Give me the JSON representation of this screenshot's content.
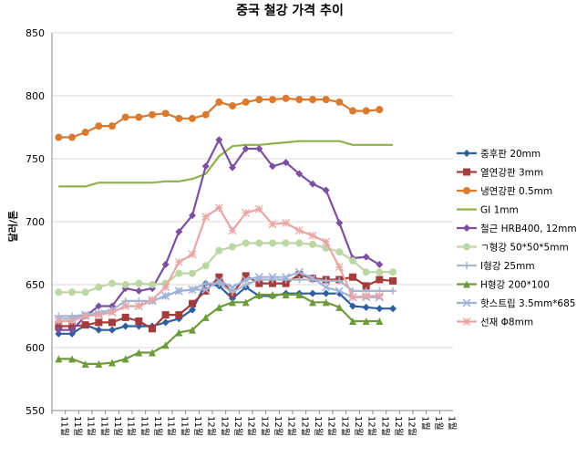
{
  "chart_data": {
    "type": "line",
    "title": "중국 철강 가격 추이",
    "ylabel": "달러/톤",
    "xlabel": "",
    "ylim": [
      550,
      850
    ],
    "yticks": [
      550,
      600,
      650,
      700,
      750,
      800,
      850
    ],
    "grid": true,
    "legend": "right",
    "categories": [
      "11월",
      "11월",
      "11월",
      "11월",
      "11월",
      "11월",
      "11월",
      "11월",
      "11월",
      "11월",
      "11월",
      "12월",
      "12월",
      "12월",
      "12월",
      "12월",
      "12월",
      "12월",
      "12월",
      "12월",
      "12월",
      "12월",
      "12월",
      "12월",
      "12월",
      "12월",
      "12월",
      "1월",
      "1월",
      "1월"
    ],
    "series": [
      {
        "name": "중후판 20mm",
        "color": "#2f5f9e",
        "marker": "diamond",
        "values": [
          611,
          611,
          618,
          614,
          614,
          617,
          617,
          617,
          620,
          623,
          630,
          651,
          649,
          639,
          648,
          641,
          641,
          643,
          643,
          643,
          643,
          643,
          633,
          632,
          631,
          631,
          null,
          null,
          null,
          null
        ]
      },
      {
        "name": "열연강판 3mm",
        "color": "#a53b3b",
        "marker": "square",
        "values": [
          617,
          617,
          618,
          620,
          620,
          624,
          621,
          615,
          626,
          626,
          635,
          645,
          656,
          643,
          657,
          651,
          651,
          651,
          658,
          655,
          654,
          654,
          656,
          649,
          654,
          653,
          null,
          null,
          null,
          null
        ]
      },
      {
        "name": "냉연강판 0.5mm",
        "color": "#d97a2f",
        "marker": "circle",
        "values": [
          767,
          767,
          771,
          776,
          776,
          783,
          783,
          785,
          786,
          782,
          782,
          785,
          795,
          792,
          795,
          797,
          797,
          798,
          797,
          797,
          797,
          795,
          788,
          788,
          789,
          null,
          null,
          null,
          null,
          null
        ]
      },
      {
        "name": "GI 1mm",
        "color": "#8cb34a",
        "marker": "none",
        "values": [
          728,
          728,
          728,
          731,
          731,
          731,
          731,
          731,
          732,
          732,
          734,
          738,
          752,
          760,
          761,
          761,
          762,
          763,
          764,
          764,
          764,
          764,
          761,
          761,
          761,
          761,
          null,
          null,
          null,
          null
        ]
      },
      {
        "name": "철근 HRB400, 12mm",
        "color": "#7d4fa0",
        "marker": "diamond",
        "values": [
          614,
          614,
          625,
          633,
          633,
          647,
          645,
          647,
          666,
          692,
          705,
          744,
          765,
          743,
          758,
          758,
          744,
          747,
          738,
          730,
          725,
          699,
          671,
          672,
          666,
          null,
          null,
          null,
          null,
          null
        ]
      },
      {
        "name": "ㄱ형강 50*50*5mm",
        "color": "#bcd6a4",
        "marker": "circle",
        "values": [
          644,
          644,
          644,
          648,
          651,
          650,
          651,
          650,
          651,
          659,
          659,
          665,
          677,
          680,
          683,
          683,
          683,
          683,
          683,
          682,
          679,
          676,
          669,
          660,
          660,
          660,
          null,
          null,
          null,
          null
        ]
      },
      {
        "name": "I형강 25mm",
        "color": "#a9b4cf",
        "marker": "plus",
        "values": [
          625,
          625,
          626,
          628,
          630,
          637,
          637,
          637,
          641,
          645,
          646,
          651,
          651,
          644,
          650,
          654,
          654,
          654,
          654,
          654,
          653,
          653,
          645,
          645,
          645,
          645,
          null,
          null,
          null,
          null
        ]
      },
      {
        "name": "H형강 200*100",
        "color": "#6f9a3a",
        "marker": "triangle",
        "values": [
          591,
          591,
          587,
          587,
          588,
          591,
          596,
          596,
          602,
          612,
          614,
          624,
          632,
          636,
          636,
          642,
          642,
          642,
          642,
          636,
          636,
          632,
          621,
          621,
          621,
          null,
          null,
          null,
          null,
          null
        ]
      },
      {
        "name": "핫스트립 3.5mm*685",
        "color": "#9fb3db",
        "marker": "cross",
        "values": [
          623,
          623,
          626,
          627,
          628,
          633,
          633,
          637,
          641,
          645,
          646,
          646,
          653,
          648,
          654,
          656,
          656,
          656,
          660,
          655,
          648,
          645,
          640,
          640,
          640,
          null,
          null,
          null,
          null,
          null
        ]
      },
      {
        "name": "선재 Φ8mm",
        "color": "#e8a7a7",
        "marker": "star",
        "values": [
          621,
          621,
          625,
          626,
          628,
          633,
          633,
          638,
          648,
          668,
          674,
          704,
          711,
          693,
          707,
          710,
          698,
          699,
          693,
          689,
          684,
          664,
          640,
          641,
          641,
          null,
          null,
          null,
          null,
          null
        ]
      }
    ]
  }
}
